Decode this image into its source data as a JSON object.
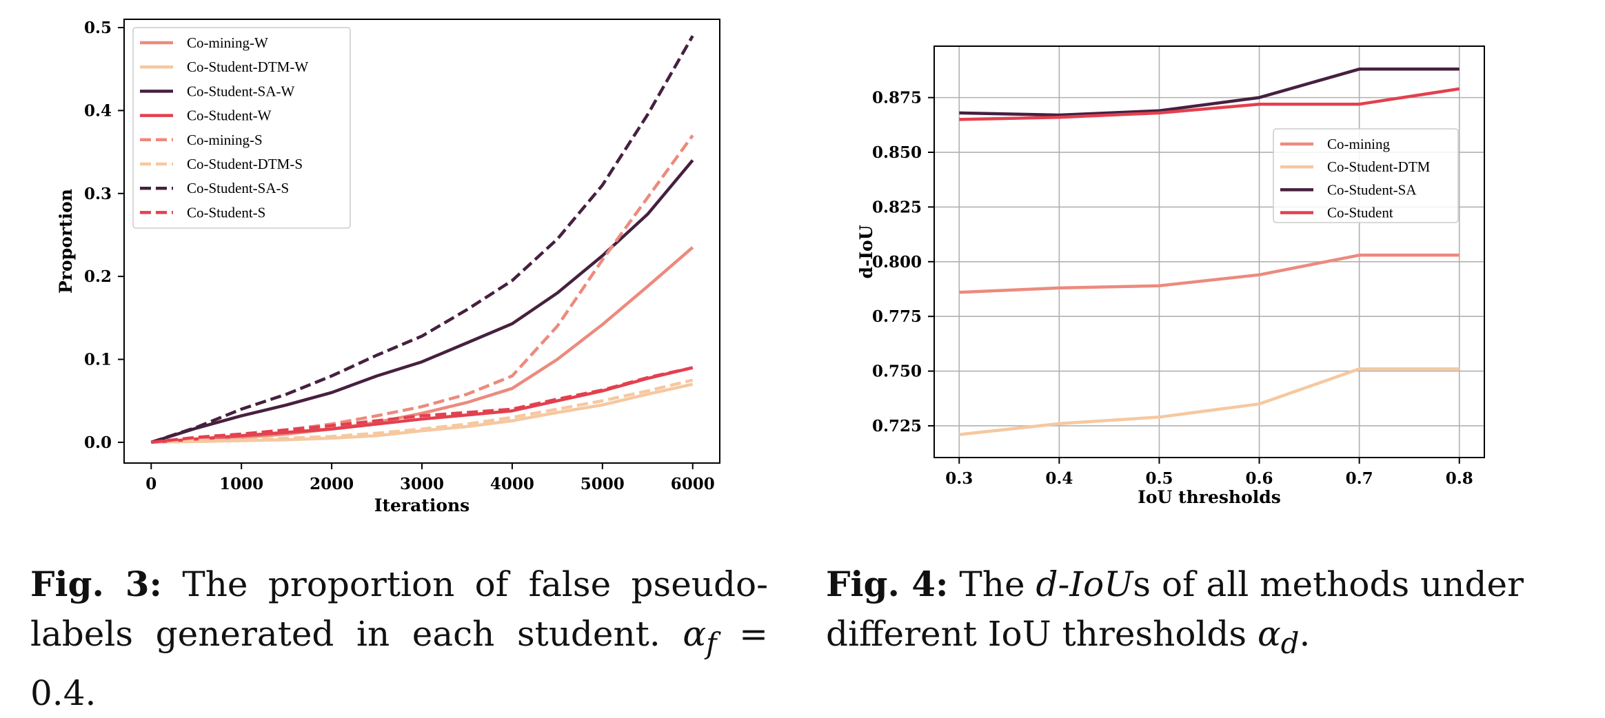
{
  "colors": {
    "co_mining": "#ec8a7d",
    "co_student_dtm": "#f6c8a0",
    "co_student_sa": "#46203f",
    "co_student": "#e3404f"
  },
  "chart_data": [
    {
      "type": "line",
      "xlabel": "Iterations",
      "ylabel": "Proportion",
      "xlim": [
        -300,
        6300
      ],
      "ylim": [
        -0.025,
        0.51
      ],
      "xticks": [
        0,
        1000,
        2000,
        3000,
        4000,
        5000,
        6000
      ],
      "yticks": [
        0.0,
        0.1,
        0.2,
        0.3,
        0.4,
        0.5
      ],
      "grid": false,
      "legend_position": "top-left",
      "x": [
        0,
        500,
        1000,
        1500,
        2000,
        2500,
        3000,
        3500,
        4000,
        4500,
        5000,
        5500,
        6000
      ],
      "series": [
        {
          "name": "Co-mining-W",
          "color": "#ec8a7d",
          "style": "solid",
          "values": [
            0.0,
            0.003,
            0.006,
            0.01,
            0.016,
            0.024,
            0.035,
            0.048,
            0.065,
            0.1,
            0.142,
            0.188,
            0.235
          ]
        },
        {
          "name": "Co-Student-DTM-W",
          "color": "#f6c8a0",
          "style": "solid",
          "values": [
            0.0,
            0.001,
            0.002,
            0.003,
            0.005,
            0.008,
            0.014,
            0.019,
            0.026,
            0.036,
            0.045,
            0.058,
            0.07
          ]
        },
        {
          "name": "Co-Student-SA-W",
          "color": "#46203f",
          "style": "solid",
          "values": [
            0.0,
            0.017,
            0.032,
            0.045,
            0.06,
            0.08,
            0.097,
            0.12,
            0.143,
            0.18,
            0.225,
            0.275,
            0.34
          ]
        },
        {
          "name": "Co-Student-W",
          "color": "#e3404f",
          "style": "solid",
          "values": [
            0.0,
            0.004,
            0.008,
            0.012,
            0.016,
            0.022,
            0.028,
            0.033,
            0.038,
            0.05,
            0.062,
            0.077,
            0.09
          ]
        },
        {
          "name": "Co-mining-S",
          "color": "#ec8a7d",
          "style": "dashed",
          "values": [
            0.0,
            0.005,
            0.01,
            0.015,
            0.022,
            0.032,
            0.043,
            0.058,
            0.08,
            0.14,
            0.22,
            0.295,
            0.37
          ]
        },
        {
          "name": "Co-Student-DTM-S",
          "color": "#f6c8a0",
          "style": "dashed",
          "values": [
            0.0,
            0.002,
            0.003,
            0.005,
            0.007,
            0.011,
            0.016,
            0.022,
            0.03,
            0.04,
            0.05,
            0.062,
            0.075
          ]
        },
        {
          "name": "Co-Student-SA-S",
          "color": "#46203f",
          "style": "dashed",
          "values": [
            0.0,
            0.018,
            0.04,
            0.058,
            0.08,
            0.105,
            0.128,
            0.16,
            0.195,
            0.245,
            0.31,
            0.395,
            0.49
          ]
        },
        {
          "name": "Co-Student-S",
          "color": "#e3404f",
          "style": "dashed",
          "values": [
            0.0,
            0.006,
            0.01,
            0.015,
            0.02,
            0.026,
            0.032,
            0.036,
            0.04,
            0.052,
            0.063,
            0.078,
            0.09
          ]
        }
      ]
    },
    {
      "type": "line",
      "xlabel": "IoU thresholds",
      "ylabel": "d-IoU",
      "xlim": [
        0.275,
        0.825
      ],
      "ylim": [
        0.7105,
        0.8985
      ],
      "xticks": [
        0.3,
        0.4,
        0.5,
        0.6,
        0.7,
        0.8
      ],
      "yticks": [
        0.725,
        0.75,
        0.775,
        0.8,
        0.825,
        0.85,
        0.875
      ],
      "grid": true,
      "legend_position": "center-right",
      "x": [
        0.3,
        0.4,
        0.5,
        0.6,
        0.7,
        0.8
      ],
      "series": [
        {
          "name": "Co-mining",
          "color": "#ec8a7d",
          "style": "solid",
          "values": [
            0.786,
            0.788,
            0.789,
            0.794,
            0.803,
            0.803
          ]
        },
        {
          "name": "Co-Student-DTM",
          "color": "#f6c8a0",
          "style": "solid",
          "values": [
            0.721,
            0.726,
            0.729,
            0.735,
            0.751,
            0.751
          ]
        },
        {
          "name": "Co-Student-SA",
          "color": "#46203f",
          "style": "solid",
          "values": [
            0.868,
            0.867,
            0.869,
            0.875,
            0.888,
            0.888
          ]
        },
        {
          "name": "Co-Student",
          "color": "#e3404f",
          "style": "solid",
          "values": [
            0.865,
            0.866,
            0.868,
            0.872,
            0.872,
            0.879
          ]
        }
      ]
    }
  ],
  "captions": {
    "fig3": {
      "label": "Fig. 3:",
      "text": "The proportion of false pseudo-labels generated in each student.",
      "alpha": "α",
      "alpha_sub": "f",
      "equals": "= 0.4."
    },
    "fig4": {
      "label": "Fig. 4:",
      "text_a": "The",
      "metric": "d-IoU",
      "text_b": "s of all methods under different IoU thresholds",
      "alpha": "α",
      "alpha_sub": "d",
      "end": "."
    }
  }
}
